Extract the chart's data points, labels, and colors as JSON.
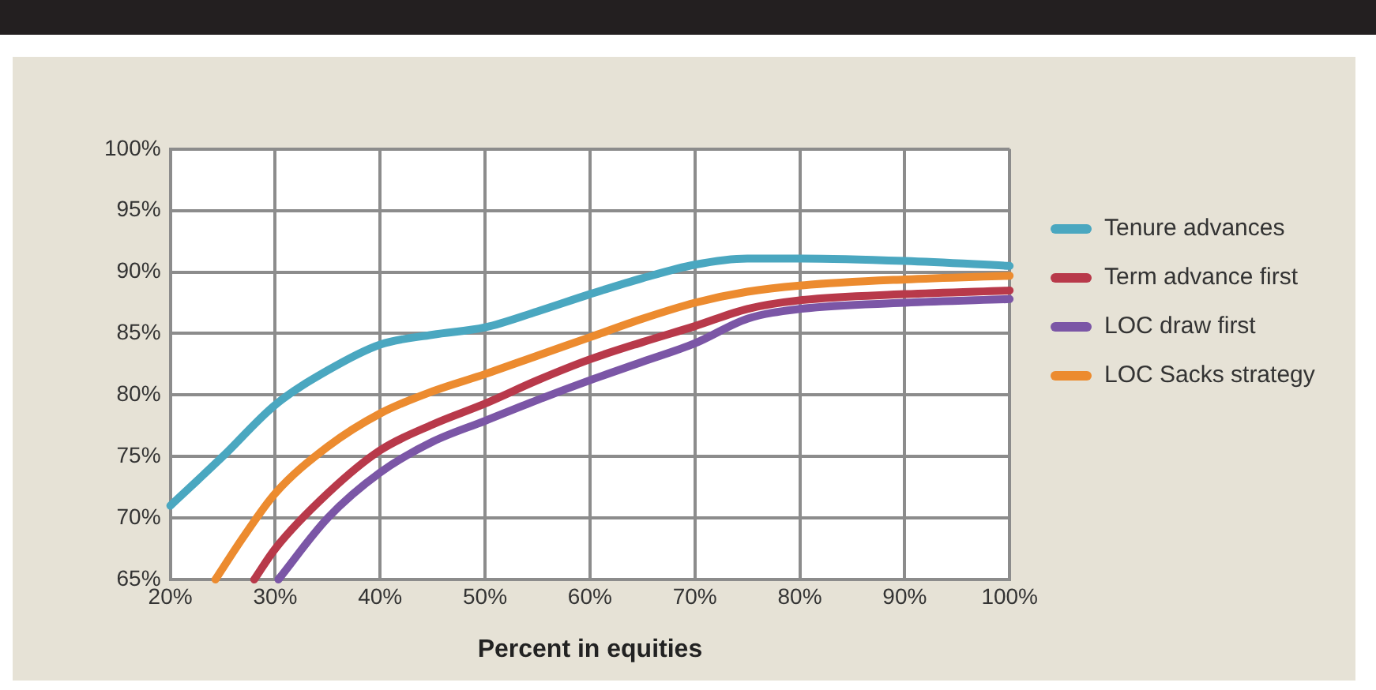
{
  "chart_data": {
    "type": "line",
    "xlabel": "Percent in equities",
    "xlim": [
      20,
      100
    ],
    "ylim": [
      65,
      100
    ],
    "xticks": [
      {
        "value": 20,
        "label": "20%"
      },
      {
        "value": 30,
        "label": "30%"
      },
      {
        "value": 40,
        "label": "40%"
      },
      {
        "value": 50,
        "label": "50%"
      },
      {
        "value": 60,
        "label": "60%"
      },
      {
        "value": 70,
        "label": "70%"
      },
      {
        "value": 80,
        "label": "80%"
      },
      {
        "value": 90,
        "label": "90%"
      },
      {
        "value": 100,
        "label": "100%"
      }
    ],
    "yticks": [
      {
        "value": 65,
        "label": "65%"
      },
      {
        "value": 70,
        "label": "70%"
      },
      {
        "value": 75,
        "label": "75%"
      },
      {
        "value": 80,
        "label": "80%"
      },
      {
        "value": 85,
        "label": "85%"
      },
      {
        "value": 90,
        "label": "90%"
      },
      {
        "value": 95,
        "label": "95%"
      },
      {
        "value": 100,
        "label": "100%"
      }
    ],
    "grid": true,
    "legend": "right",
    "marker": "none",
    "line_style": "solid",
    "series": [
      {
        "name": "Tenure advances",
        "color": "#4aa7c0",
        "x": [
          20,
          25,
          30,
          35,
          40,
          45,
          50,
          55,
          60,
          65,
          70,
          75,
          80,
          90,
          100
        ],
        "values": [
          71,
          75,
          79.2,
          82,
          84.1,
          84.9,
          85.5,
          86.8,
          88.2,
          89.5,
          90.6,
          91.1,
          91.1,
          90.9,
          90.5
        ]
      },
      {
        "name": "Term advance first",
        "color": "#b8394a",
        "x": [
          28,
          30,
          35,
          40,
          45,
          50,
          55,
          60,
          65,
          70,
          75,
          80,
          90,
          100
        ],
        "values": [
          65,
          67.5,
          72,
          75.5,
          77.6,
          79.3,
          81.2,
          82.9,
          84.3,
          85.6,
          87,
          87.7,
          88.2,
          88.5
        ]
      },
      {
        "name": "LOC draw first",
        "color": "#7b56a6",
        "x": [
          30.3,
          35,
          40,
          45,
          50,
          55,
          60,
          65,
          70,
          75,
          80,
          90,
          100
        ],
        "values": [
          65,
          70,
          73.7,
          76.2,
          77.9,
          79.6,
          81.2,
          82.7,
          84.2,
          86.2,
          87,
          87.5,
          87.8
        ]
      },
      {
        "name": "LOC Sacks strategy",
        "color": "#ec8b2f",
        "x": [
          24.3,
          27,
          30,
          35,
          40,
          45,
          50,
          55,
          60,
          65,
          70,
          75,
          80,
          90,
          100
        ],
        "values": [
          65,
          68.5,
          72,
          75.8,
          78.5,
          80.3,
          81.7,
          83.2,
          84.7,
          86.2,
          87.5,
          88.4,
          88.9,
          89.4,
          89.7
        ]
      }
    ]
  }
}
